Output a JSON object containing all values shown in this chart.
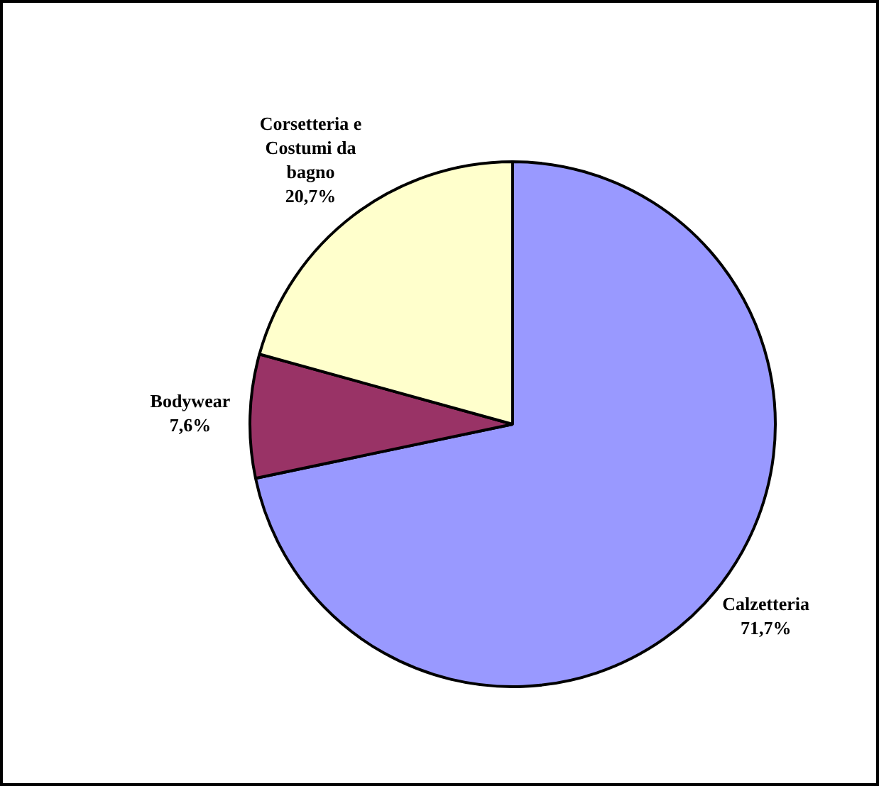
{
  "chart_data": {
    "type": "pie",
    "categories": [
      "Calzetteria",
      "Bodywear",
      "Corsetteria e Costumi da bagno"
    ],
    "values": [
      71.7,
      7.6,
      20.7
    ],
    "colors": [
      "#9999ff",
      "#993366",
      "#ffffcc"
    ],
    "value_labels": [
      "71,7%",
      "7,6%",
      "20,7%"
    ],
    "legend": false
  }
}
